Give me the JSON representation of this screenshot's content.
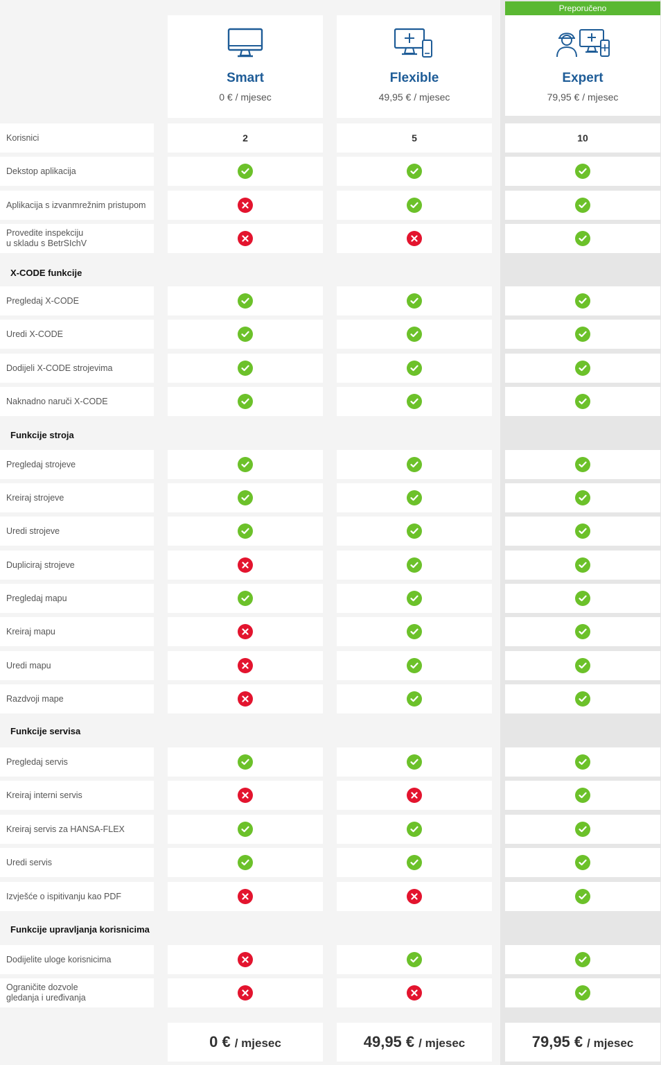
{
  "badge": "Preporučeno",
  "plans": [
    {
      "name": "Smart",
      "price": "0 € / mjesec",
      "footer_amount": "0 €",
      "footer_unit": "/ mjesec"
    },
    {
      "name": "Flexible",
      "price": "49,95 € / mjesec",
      "footer_amount": "49,95 €",
      "footer_unit": "/ mjesec"
    },
    {
      "name": "Expert",
      "price": "79,95 € / mjesec",
      "footer_amount": "79,95 €",
      "footer_unit": "/ mjesec"
    }
  ],
  "colors": {
    "accent": "#1e5c97",
    "yes": "#6cc12a",
    "no": "#e3142e",
    "badge": "#5ab832"
  },
  "rows": [
    {
      "label": "Korisnici",
      "values": [
        "2",
        "5",
        "10"
      ]
    },
    {
      "label": "Dekstop aplikacija",
      "values": [
        true,
        true,
        true
      ]
    },
    {
      "label": "Aplikacija s izvanmrežnim pristupom",
      "values": [
        false,
        true,
        true
      ]
    },
    {
      "label": "Provedite inspekciju\nu skladu s BetrSIchV",
      "values": [
        false,
        false,
        true
      ]
    },
    {
      "section": "X-CODE funkcije"
    },
    {
      "label": "Pregledaj X-CODE",
      "values": [
        true,
        true,
        true
      ]
    },
    {
      "label": "Uredi X-CODE",
      "values": [
        true,
        true,
        true
      ]
    },
    {
      "label": "Dodijeli X-CODE strojevima",
      "values": [
        true,
        true,
        true
      ]
    },
    {
      "label": "Naknadno naruči X-CODE",
      "values": [
        true,
        true,
        true
      ]
    },
    {
      "section": "Funkcije stroja"
    },
    {
      "label": "Pregledaj strojeve",
      "values": [
        true,
        true,
        true
      ]
    },
    {
      "label": "Kreiraj strojeve",
      "values": [
        true,
        true,
        true
      ]
    },
    {
      "label": "Uredi strojeve",
      "values": [
        true,
        true,
        true
      ]
    },
    {
      "label": "Dupliciraj strojeve",
      "values": [
        false,
        true,
        true
      ]
    },
    {
      "label": "Pregledaj mapu",
      "values": [
        true,
        true,
        true
      ]
    },
    {
      "label": "Kreiraj mapu",
      "values": [
        false,
        true,
        true
      ]
    },
    {
      "label": "Uredi mapu",
      "values": [
        false,
        true,
        true
      ]
    },
    {
      "label": "Razdvoji mape",
      "values": [
        false,
        true,
        true
      ]
    },
    {
      "section": "Funkcije servisa"
    },
    {
      "label": "Pregledaj servis",
      "values": [
        true,
        true,
        true
      ]
    },
    {
      "label": "Kreiraj interni servis",
      "values": [
        false,
        false,
        true
      ]
    },
    {
      "label": "Kreiraj servis za HANSA-FLEX",
      "values": [
        true,
        true,
        true
      ]
    },
    {
      "label": "Uredi servis",
      "values": [
        true,
        true,
        true
      ]
    },
    {
      "label": "Izvješće o ispitivanju kao PDF",
      "values": [
        false,
        false,
        true
      ]
    },
    {
      "section": "Funkcije upravljanja korisnicima"
    },
    {
      "label": "Dodijelite uloge korisnicima",
      "values": [
        false,
        true,
        true
      ]
    },
    {
      "label": "Ograničite dozvole\ngledanja i uređivanja",
      "values": [
        false,
        false,
        true
      ]
    }
  ]
}
